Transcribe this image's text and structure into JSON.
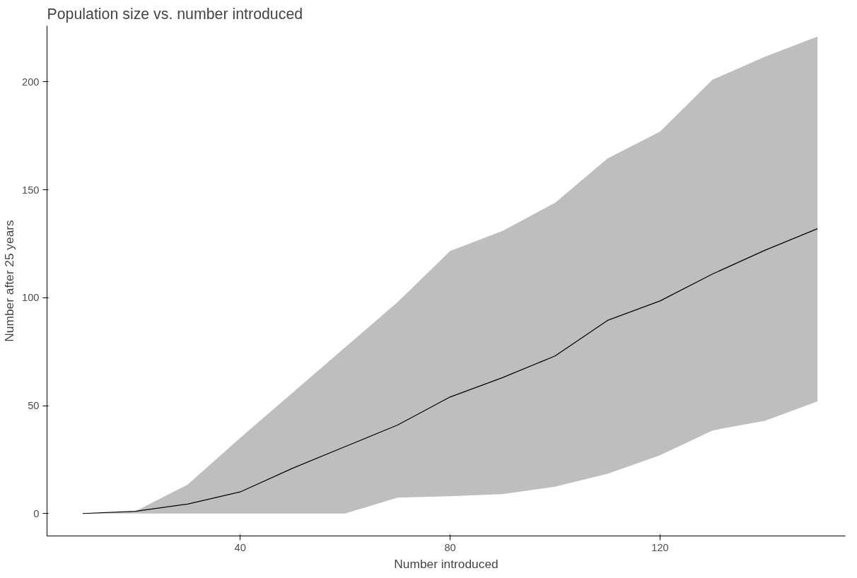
{
  "chart_data": {
    "type": "line",
    "title": "Population size vs. number introduced",
    "xlabel": "Number introduced",
    "ylabel": "Number after 25 years",
    "x": [
      10,
      20,
      30,
      40,
      50,
      60,
      70,
      80,
      90,
      100,
      110,
      120,
      130,
      140,
      150
    ],
    "series": [
      {
        "color": "#000000",
        "values": [
          0,
          1,
          4.4,
          10,
          21,
          31,
          41,
          54,
          63,
          73,
          89.5,
          98.5,
          111,
          122,
          132
        ],
        "lower": [
          0,
          0,
          0,
          0,
          0,
          0,
          7.4,
          8,
          9,
          12.4,
          18.4,
          27,
          38.5,
          43,
          52
        ],
        "upper": [
          0,
          1,
          13.4,
          35,
          56,
          77,
          98,
          121.6,
          131,
          144,
          164.5,
          177,
          201,
          211.7,
          221
        ]
      }
    ],
    "xlim": [
      3.2,
      155.3
    ],
    "ylim": [
      -10.4,
      226
    ],
    "xticks": [
      40,
      80,
      120
    ],
    "yticks": [
      0,
      50,
      100,
      150,
      200
    ],
    "grid": false,
    "marker": "none",
    "line_style": "solid"
  }
}
